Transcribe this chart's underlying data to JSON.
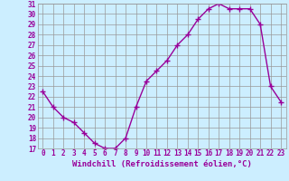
{
  "x": [
    0,
    1,
    2,
    3,
    4,
    5,
    6,
    7,
    8,
    9,
    10,
    11,
    12,
    13,
    14,
    15,
    16,
    17,
    18,
    19,
    20,
    21,
    22,
    23
  ],
  "y": [
    22.5,
    21.0,
    20.0,
    19.5,
    18.5,
    17.5,
    17.0,
    17.0,
    18.0,
    21.0,
    23.5,
    24.5,
    25.5,
    27.0,
    28.0,
    29.5,
    30.5,
    31.0,
    30.5,
    30.5,
    30.5,
    29.0,
    23.0,
    21.5
  ],
  "line_color": "#990099",
  "marker": "+",
  "markersize": 4,
  "linewidth": 1.0,
  "markeredgewidth": 1.0,
  "xlabel": "Windchill (Refroidissement éolien,°C)",
  "ylim": [
    17,
    31
  ],
  "xlim_min": -0.5,
  "xlim_max": 23.5,
  "yticks": [
    17,
    18,
    19,
    20,
    21,
    22,
    23,
    24,
    25,
    26,
    27,
    28,
    29,
    30,
    31
  ],
  "xticks": [
    0,
    1,
    2,
    3,
    4,
    5,
    6,
    7,
    8,
    9,
    10,
    11,
    12,
    13,
    14,
    15,
    16,
    17,
    18,
    19,
    20,
    21,
    22,
    23
  ],
  "bg_color": "#cceeff",
  "grid_color": "#aaaaaa",
  "line_grid_color": "#999999",
  "tick_color": "#990099",
  "label_color": "#990099",
  "xlabel_fontsize": 6.5,
  "tick_fontsize": 5.5
}
